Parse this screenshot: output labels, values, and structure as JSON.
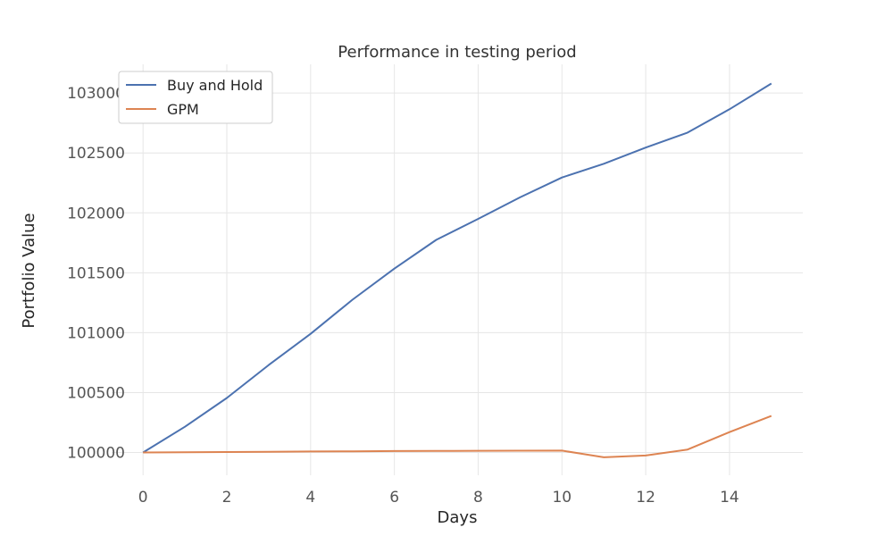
{
  "chart_data": {
    "type": "line",
    "title": "Performance in testing period",
    "xlabel": "Days",
    "ylabel": "Portfolio Value",
    "x": [
      0,
      1,
      2,
      3,
      4,
      5,
      6,
      7,
      8,
      9,
      10,
      11,
      12,
      13,
      14,
      15
    ],
    "xlim": [
      -0.75,
      15.75
    ],
    "ylim": [
      99810,
      103240
    ],
    "xticks": [
      0,
      2,
      4,
      6,
      8,
      10,
      12,
      14
    ],
    "yticks": [
      100000,
      100500,
      101000,
      101500,
      102000,
      102500,
      103000
    ],
    "grid": true,
    "legend_position": "top-left",
    "series": [
      {
        "name": "Buy and Hold",
        "color": "#4c72b0",
        "values": [
          100000,
          100215,
          100455,
          100730,
          100990,
          101275,
          101535,
          101775,
          101950,
          102130,
          102295,
          102410,
          102545,
          102670,
          102865,
          103080
        ]
      },
      {
        "name": "GPM",
        "color": "#dd8452",
        "values": [
          100000,
          100002,
          100004,
          100006,
          100008,
          100010,
          100012,
          100013,
          100014,
          100015,
          100016,
          99960,
          99975,
          100025,
          100170,
          100305
        ]
      }
    ]
  }
}
